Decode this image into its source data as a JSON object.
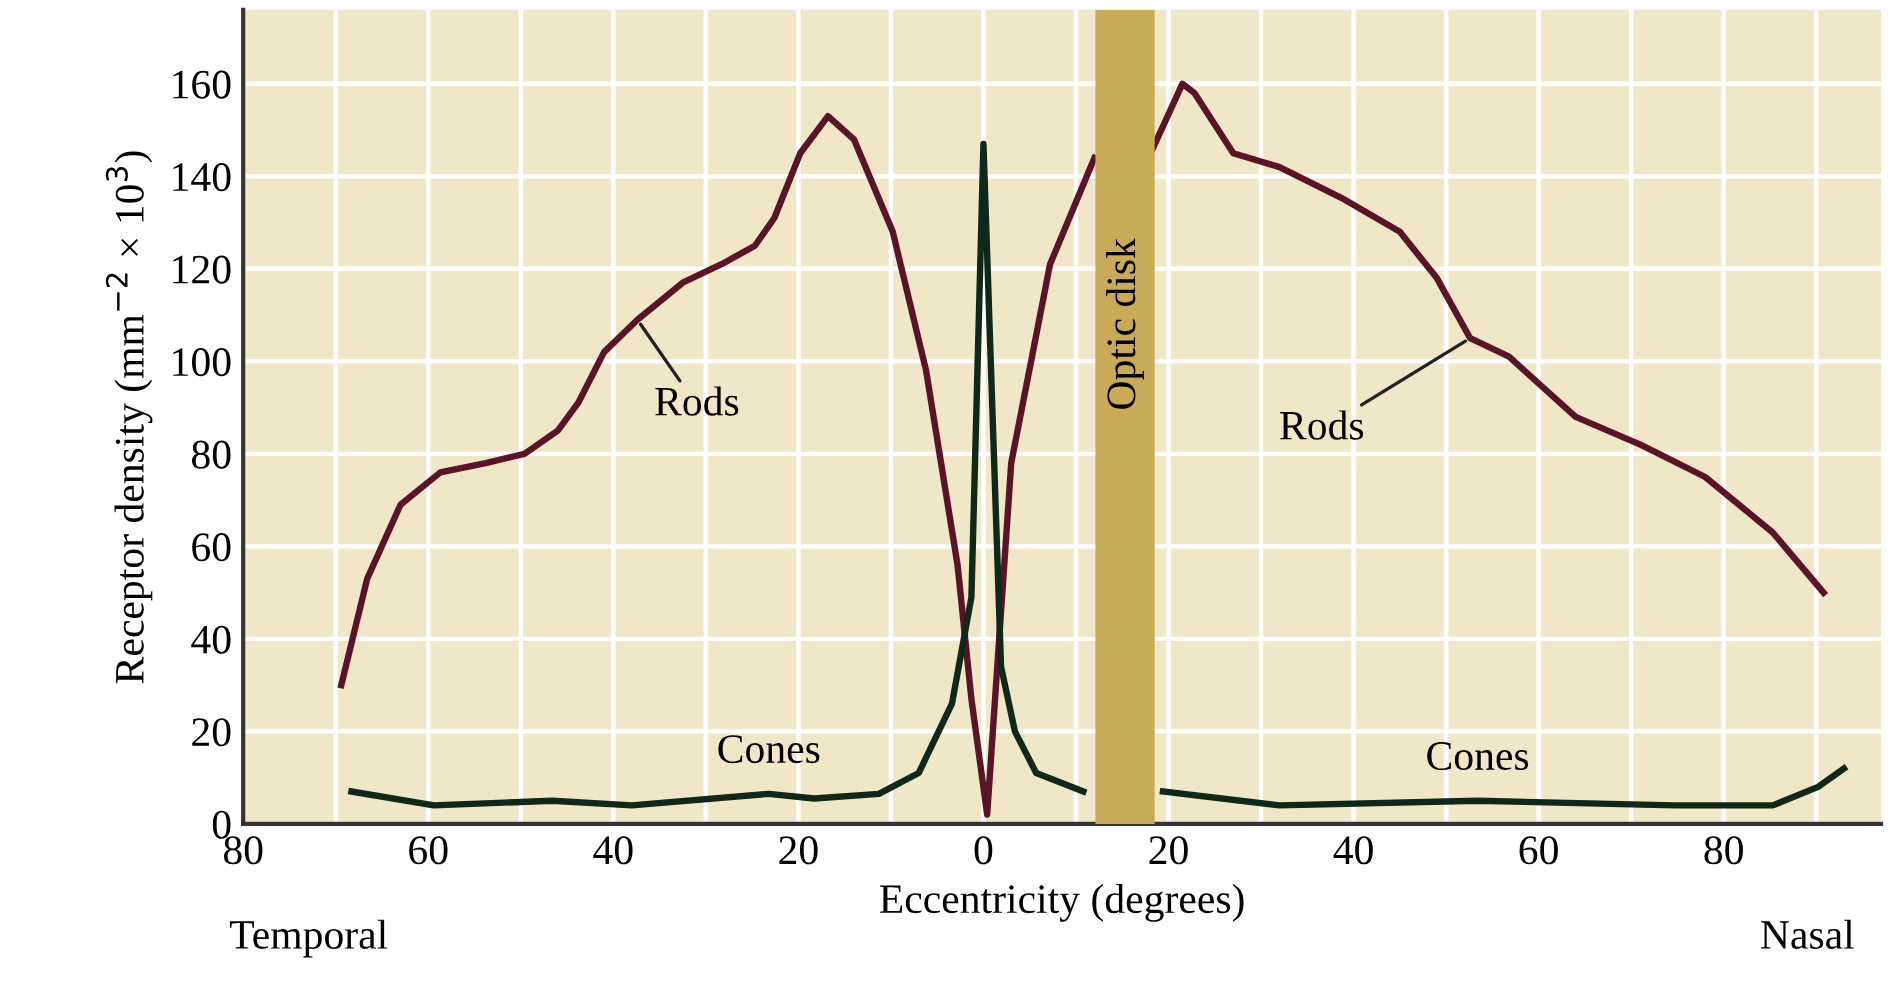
{
  "chart_data": {
    "type": "line",
    "xlabel": "Eccentricity (degrees)",
    "ylabel": "Receptor density (mm$^{−2}$ × 10$^{3}$)",
    "xlim": [
      -80,
      97
    ],
    "ylim": [
      0,
      176
    ],
    "xticks": [
      {
        "value": -80,
        "label": "80"
      },
      {
        "value": -70,
        "label": null
      },
      {
        "value": -60,
        "label": "60"
      },
      {
        "value": -50,
        "label": null
      },
      {
        "value": -40,
        "label": "40"
      },
      {
        "value": -30,
        "label": null
      },
      {
        "value": -20,
        "label": "20"
      },
      {
        "value": -10,
        "label": null
      },
      0,
      {
        "value": 10,
        "label": null
      },
      20,
      {
        "value": 30,
        "label": null
      },
      40,
      {
        "value": 50,
        "label": null
      },
      60,
      {
        "value": 70,
        "label": null
      },
      80,
      {
        "value": 90,
        "label": null
      }
    ],
    "yticks": [
      0,
      20,
      40,
      60,
      80,
      100,
      120,
      140,
      160
    ],
    "grid": true,
    "series": [
      {
        "name": "Rods",
        "color": "#5a1428",
        "x": [
          -69.4,
          -66.6,
          -63,
          -58.7,
          -53.8,
          -49.6,
          -46,
          -43.8,
          -41,
          -37.4,
          -32.5,
          -28.3,
          -24.7,
          -22.6,
          -19.8,
          -16.8,
          -14,
          -9.8,
          -6.2,
          -2.8,
          -1.3,
          0.4,
          3,
          7.2,
          12,
          15,
          18.3,
          21.5,
          22.8,
          27,
          32,
          39,
          45,
          49,
          52.6,
          56.8,
          64,
          71,
          78,
          85.3,
          90.8
        ],
        "values": [
          30,
          53,
          69,
          76,
          78,
          80,
          85,
          91,
          102,
          109,
          117,
          121,
          125,
          131,
          145,
          153,
          148,
          128,
          98,
          56,
          27,
          2,
          78,
          121,
          144,
          null,
          146,
          160,
          158,
          145,
          142,
          135,
          128,
          118,
          105,
          101,
          88,
          82,
          75,
          63,
          50
        ]
      },
      {
        "name": "Cones",
        "color": "#10281a",
        "x": [
          -68.3,
          -59.4,
          -46.6,
          -38,
          -23.2,
          -18.3,
          -11.3,
          -7,
          -3.4,
          -1.3,
          0,
          1.9,
          3.4,
          5.7,
          10.8,
          15,
          19.4,
          32,
          53.4,
          74.7,
          85.3,
          90.2,
          93
        ],
        "values": [
          7,
          4,
          5,
          4,
          6.5,
          5.5,
          6.5,
          11,
          26,
          49,
          147,
          34,
          20,
          11,
          7,
          null,
          7,
          4,
          5,
          4,
          4,
          8,
          12
        ]
      }
    ],
    "bands": [
      {
        "axis": "x",
        "from": 12.1,
        "to": 18.5,
        "label": "Optic disk",
        "color": "#c8aa58"
      }
    ],
    "annotations": [
      "Temporal",
      "Nasal"
    ]
  }
}
